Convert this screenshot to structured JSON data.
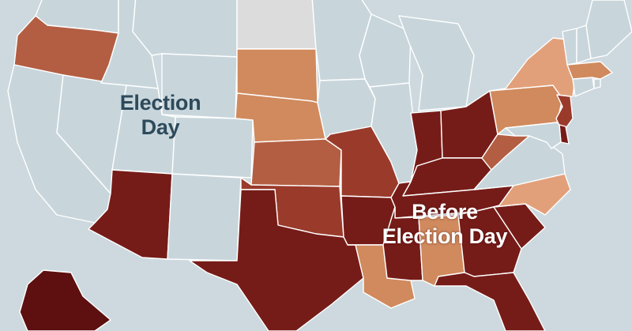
{
  "labels": {
    "election_day": [
      "Election",
      "Day"
    ],
    "before_election_day": [
      "Before",
      "Election Day"
    ]
  },
  "colors": {
    "background": "#cdd9de",
    "election_day": "#c8d6dc",
    "no_data": "#dcdcdc",
    "light": "#e2a07a",
    "light_mid": "#d08a5e",
    "mid": "#b35e42",
    "mid_dark": "#9a3a2b",
    "dark": "#761c18",
    "darkest": "#5e0f10",
    "border": "#ffffff"
  },
  "legend_categories": [
    "Election Day",
    "Before Election Day"
  ],
  "states": [
    {
      "id": "WA",
      "category": "election_day"
    },
    {
      "id": "OR",
      "category": "mid"
    },
    {
      "id": "CA",
      "category": "election_day"
    },
    {
      "id": "NV",
      "category": "election_day"
    },
    {
      "id": "ID",
      "category": "election_day"
    },
    {
      "id": "MT",
      "category": "election_day"
    },
    {
      "id": "WY",
      "category": "election_day"
    },
    {
      "id": "UT",
      "category": "election_day"
    },
    {
      "id": "CO",
      "category": "election_day"
    },
    {
      "id": "AZ",
      "category": "dark"
    },
    {
      "id": "NM",
      "category": "election_day"
    },
    {
      "id": "ND",
      "category": "no_data"
    },
    {
      "id": "SD",
      "category": "light_mid"
    },
    {
      "id": "NE",
      "category": "light_mid"
    },
    {
      "id": "KS",
      "category": "mid"
    },
    {
      "id": "OK",
      "category": "mid_dark"
    },
    {
      "id": "TX",
      "category": "dark"
    },
    {
      "id": "MN",
      "category": "election_day"
    },
    {
      "id": "IA",
      "category": "election_day"
    },
    {
      "id": "MO",
      "category": "mid_dark"
    },
    {
      "id": "AR",
      "category": "dark"
    },
    {
      "id": "LA",
      "category": "light_mid"
    },
    {
      "id": "WI",
      "category": "election_day"
    },
    {
      "id": "IL",
      "category": "election_day"
    },
    {
      "id": "MI",
      "category": "election_day"
    },
    {
      "id": "IN",
      "category": "dark"
    },
    {
      "id": "OH",
      "category": "dark"
    },
    {
      "id": "KY",
      "category": "dark"
    },
    {
      "id": "TN",
      "category": "dark"
    },
    {
      "id": "MS",
      "category": "dark"
    },
    {
      "id": "AL",
      "category": "light_mid"
    },
    {
      "id": "GA",
      "category": "dark"
    },
    {
      "id": "FL",
      "category": "dark"
    },
    {
      "id": "SC",
      "category": "dark"
    },
    {
      "id": "NC",
      "category": "light"
    },
    {
      "id": "VA",
      "category": "election_day"
    },
    {
      "id": "WV",
      "category": "mid"
    },
    {
      "id": "PA",
      "category": "light_mid"
    },
    {
      "id": "NY",
      "category": "light"
    },
    {
      "id": "NJ",
      "category": "mid_dark"
    },
    {
      "id": "DE",
      "category": "dark"
    },
    {
      "id": "MD",
      "category": "election_day"
    },
    {
      "id": "CT",
      "category": "election_day"
    },
    {
      "id": "RI",
      "category": "election_day"
    },
    {
      "id": "MA",
      "category": "light_mid"
    },
    {
      "id": "VT",
      "category": "election_day"
    },
    {
      "id": "NH",
      "category": "election_day"
    },
    {
      "id": "ME",
      "category": "election_day"
    },
    {
      "id": "AK",
      "category": "darkest"
    }
  ]
}
